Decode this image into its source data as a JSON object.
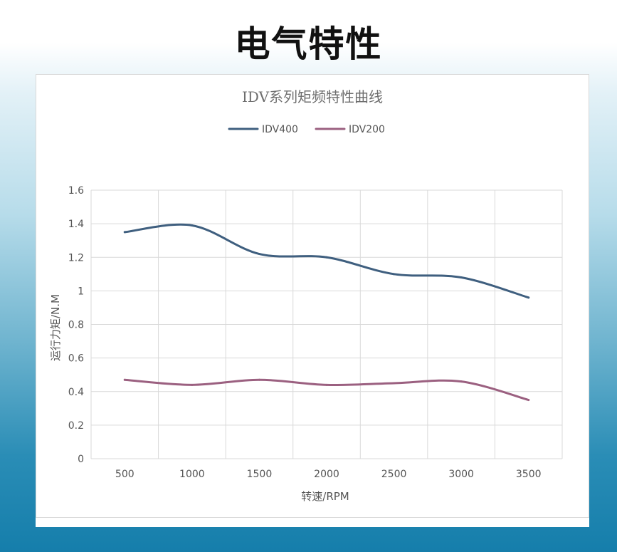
{
  "page": {
    "title": "电气特性"
  },
  "chart_data": {
    "type": "line",
    "title": "IDV系列矩频特性曲线",
    "xlabel": "转速/RPM",
    "ylabel": "运行力矩/N.M",
    "categories": [
      500,
      1000,
      1500,
      2000,
      2500,
      3000,
      3500
    ],
    "ylim": [
      0,
      1.6
    ],
    "yticks": [
      0,
      0.2,
      0.4,
      0.6,
      0.8,
      1,
      1.2,
      1.4,
      1.6
    ],
    "grid": true,
    "legend_position": "top",
    "smooth": true,
    "series": [
      {
        "name": "IDV400",
        "color": "#3f5f7f",
        "values": [
          1.35,
          1.39,
          1.22,
          1.2,
          1.1,
          1.08,
          0.96
        ]
      },
      {
        "name": "IDV200",
        "color": "#9b6080",
        "values": [
          0.47,
          0.44,
          0.47,
          0.44,
          0.45,
          0.46,
          0.35
        ]
      }
    ]
  }
}
